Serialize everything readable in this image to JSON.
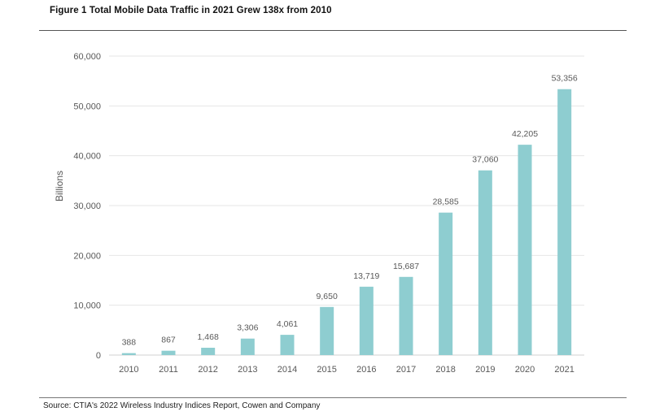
{
  "figure": {
    "title": "Figure 1 Total Mobile Data Traffic in 2021 Grew 138x from 2010",
    "source": "Source: CTIA's 2022 Wireless Industry Indices Report, Cowen and Company"
  },
  "colors": {
    "bar": "#8ecdd0",
    "grid": "#e6e6e6",
    "rule": "#555555"
  },
  "chart_data": {
    "type": "bar",
    "title": "Figure 1 Total Mobile Data Traffic in 2021 Grew 138x from 2010",
    "xlabel": "",
    "ylabel": "Billions",
    "ylim": [
      0,
      60000
    ],
    "yticks": [
      0,
      10000,
      20000,
      30000,
      40000,
      50000,
      60000
    ],
    "ytick_labels": [
      "0",
      "10,000",
      "20,000",
      "30,000",
      "40,000",
      "50,000",
      "60,000"
    ],
    "grid": true,
    "categories": [
      "2010",
      "2011",
      "2012",
      "2013",
      "2014",
      "2015",
      "2016",
      "2017",
      "2018",
      "2019",
      "2020",
      "2021"
    ],
    "values": [
      388,
      867,
      1468,
      3306,
      4061,
      9650,
      13719,
      15687,
      28585,
      37060,
      42205,
      53356
    ],
    "value_labels": [
      "388",
      "867",
      "1,468",
      "3,306",
      "4,061",
      "9,650",
      "13,719",
      "15,687",
      "28,585",
      "37,060",
      "42,205",
      "53,356"
    ]
  }
}
